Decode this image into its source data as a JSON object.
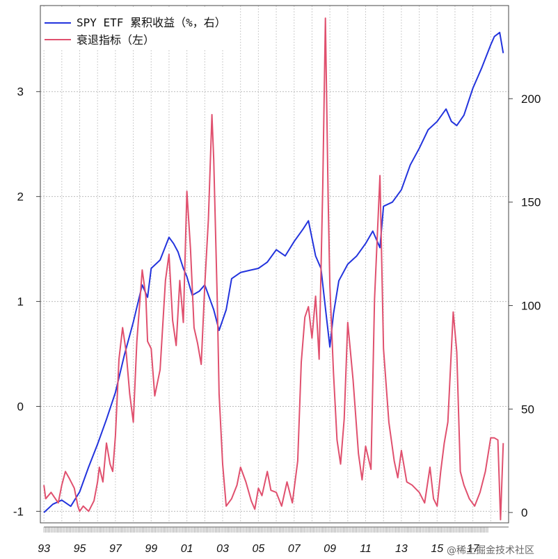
{
  "chart_data": {
    "type": "line",
    "legend": {
      "placement": "top-left",
      "entries": [
        {
          "label": "SPY ETF 累积收益（%，右）",
          "color": "#2233dd"
        },
        {
          "label": "衰退指标（左）",
          "color": "#e0506e"
        }
      ]
    },
    "x_ticks": [
      "93",
      "95",
      "97",
      "99",
      "01",
      "03",
      "05",
      "07",
      "09",
      "11",
      "13",
      "15",
      "17"
    ],
    "left_axis": {
      "ticks": [
        -1,
        0,
        1,
        2,
        3
      ],
      "ylim": [
        -1.11,
        3.82
      ]
    },
    "right_axis": {
      "ticks": [
        0,
        50,
        100,
        150,
        200
      ],
      "ylim": [
        -5,
        245
      ]
    },
    "xlim": [
      1992.8,
      2019.0
    ],
    "grid": true,
    "series": [
      {
        "name": "SPY ETF 累积收益（%，右）",
        "axis": "right",
        "color": "#2233dd",
        "x": [
          1993.0,
          1993.5,
          1994.0,
          1994.5,
          1995.0,
          1995.5,
          1996.0,
          1996.5,
          1997.0,
          1997.5,
          1998.0,
          1998.5,
          1998.8,
          1999.0,
          1999.5,
          2000.0,
          2000.25,
          2000.5,
          2000.8,
          2001.0,
          2001.3,
          2001.7,
          2002.0,
          2002.5,
          2002.8,
          2003.2,
          2003.5,
          2004.0,
          2004.5,
          2005.0,
          2005.5,
          2006.0,
          2006.5,
          2007.0,
          2007.5,
          2007.8,
          2008.2,
          2008.5,
          2008.8,
          2009.0,
          2009.2,
          2009.5,
          2010.0,
          2010.5,
          2011.0,
          2011.4,
          2011.8,
          2012.0,
          2012.5,
          2013.0,
          2013.5,
          2014.0,
          2014.5,
          2015.0,
          2015.5,
          2015.8,
          2016.1,
          2016.5,
          2017.0,
          2017.5,
          2018.0,
          2018.2,
          2018.5,
          2018.7
        ],
        "y": [
          0,
          4,
          6,
          3,
          10,
          22,
          33,
          45,
          58,
          76,
          92,
          110,
          104,
          118,
          122,
          133,
          130,
          126,
          118,
          114,
          105,
          107,
          110,
          98,
          88,
          98,
          113,
          116,
          117,
          118,
          121,
          127,
          124,
          131,
          137,
          141,
          124,
          118,
          95,
          80,
          96,
          112,
          120,
          124,
          130,
          136,
          128,
          148,
          150,
          156,
          168,
          176,
          185,
          189,
          195,
          189,
          187,
          192,
          205,
          215,
          226,
          230,
          232,
          222
        ]
      },
      {
        "name": "衰退指标（左）",
        "axis": "left",
        "color": "#e0506e",
        "x": [
          1993.0,
          1993.1,
          1993.4,
          1993.8,
          1994.0,
          1994.2,
          1994.4,
          1994.7,
          1994.9,
          1995.0,
          1995.2,
          1995.5,
          1995.8,
          1996.0,
          1996.1,
          1996.3,
          1996.5,
          1996.7,
          1996.85,
          1997.0,
          1997.2,
          1997.4,
          1997.6,
          1997.8,
          1998.0,
          1998.2,
          1998.5,
          1998.7,
          1998.8,
          1999.0,
          1999.2,
          1999.5,
          1999.8,
          2000.0,
          2000.2,
          2000.4,
          2000.6,
          2000.8,
          2001.0,
          2001.2,
          2001.4,
          2001.6,
          2001.8,
          2002.0,
          2002.2,
          2002.4,
          2002.5,
          2002.7,
          2002.8,
          2003.0,
          2003.2,
          2003.5,
          2003.8,
          2004.0,
          2004.3,
          2004.6,
          2004.8,
          2005.0,
          2005.2,
          2005.5,
          2005.7,
          2006.0,
          2006.3,
          2006.6,
          2006.9,
          2007.2,
          2007.4,
          2007.6,
          2007.8,
          2008.0,
          2008.2,
          2008.4,
          2008.6,
          2008.75,
          2008.9,
          2009.0,
          2009.2,
          2009.4,
          2009.6,
          2009.8,
          2010.0,
          2010.3,
          2010.6,
          2010.8,
          2011.0,
          2011.3,
          2011.5,
          2011.8,
          2012.0,
          2012.3,
          2012.6,
          2012.8,
          2013.0,
          2013.3,
          2013.6,
          2014.0,
          2014.3,
          2014.6,
          2014.8,
          2015.0,
          2015.2,
          2015.4,
          2015.6,
          2015.9,
          2016.1,
          2016.3,
          2016.5,
          2016.8,
          2017.1,
          2017.4,
          2017.7,
          2018.0,
          2018.2,
          2018.4,
          2018.55,
          2018.7
        ],
        "y": [
          -0.75,
          -0.88,
          -0.82,
          -0.92,
          -0.75,
          -0.62,
          -0.68,
          -0.78,
          -0.95,
          -1.0,
          -0.95,
          -1.0,
          -0.9,
          -0.72,
          -0.58,
          -0.72,
          -0.35,
          -0.55,
          -0.62,
          -0.28,
          0.45,
          0.75,
          0.52,
          0.12,
          -0.15,
          0.62,
          1.3,
          1.05,
          0.62,
          0.55,
          0.1,
          0.35,
          1.2,
          1.45,
          0.82,
          0.58,
          1.2,
          0.8,
          2.05,
          1.5,
          0.75,
          0.6,
          0.4,
          1.15,
          1.78,
          2.78,
          2.35,
          1.0,
          0.12,
          -0.55,
          -0.95,
          -0.88,
          -0.75,
          -0.58,
          -0.72,
          -0.9,
          -0.98,
          -0.78,
          -0.85,
          -0.62,
          -0.8,
          -0.82,
          -0.95,
          -0.72,
          -0.92,
          -0.52,
          0.42,
          0.85,
          0.95,
          0.65,
          1.05,
          0.45,
          2.1,
          3.7,
          2.0,
          1.15,
          0.32,
          -0.32,
          -0.55,
          -0.12,
          0.8,
          0.25,
          -0.45,
          -0.7,
          -0.38,
          -0.6,
          1.02,
          2.2,
          0.55,
          -0.15,
          -0.52,
          -0.68,
          -0.42,
          -0.72,
          -0.75,
          -0.82,
          -0.92,
          -0.58,
          -0.88,
          -0.95,
          -0.62,
          -0.35,
          -0.15,
          0.9,
          0.52,
          -0.62,
          -0.75,
          -0.88,
          -0.95,
          -0.82,
          -0.62,
          -0.3,
          -0.3,
          -0.32,
          -1.08,
          -0.35
        ]
      }
    ]
  },
  "watermark": "@稀土掘金技术社区"
}
